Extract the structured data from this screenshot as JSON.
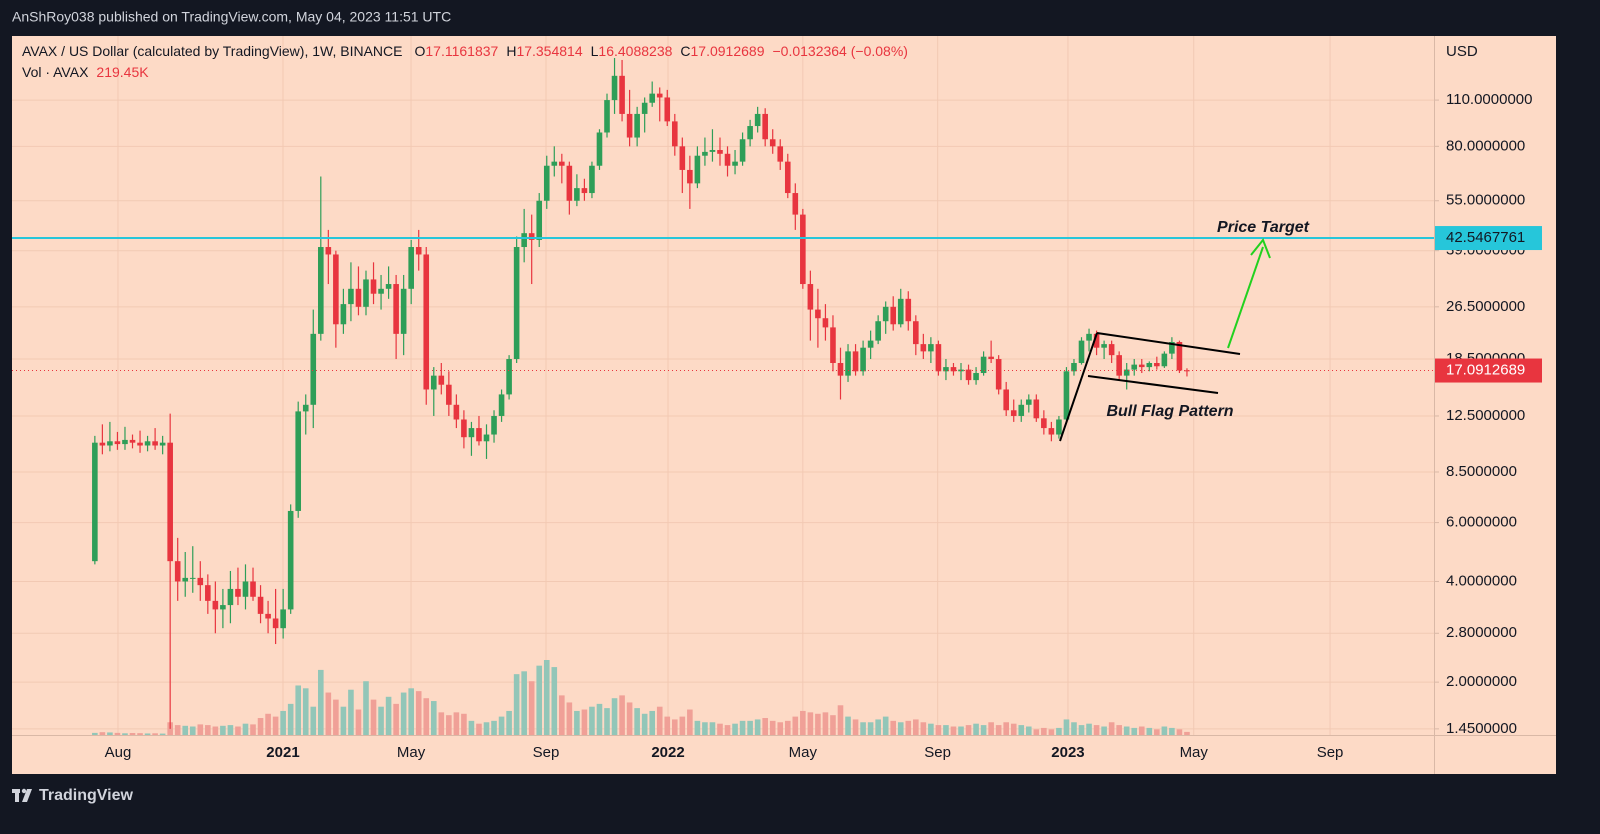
{
  "header": {
    "title": "AnShRoy038 published on TradingView.com, May 04, 2023 11:51 UTC"
  },
  "chart_data": {
    "type": "candlestick",
    "symbol": "AVAX / US Dollar (calculated by TradingView), 1W, BINANCE",
    "ohlc_letters": [
      "O",
      "H",
      "L",
      "C"
    ],
    "change_label": "−0.0132364 (−0.08%)",
    "volume_name": "Vol · AVAX",
    "volume_value_label": "219.45K",
    "y_axis_title": "USD",
    "up_color": "#2e9e58",
    "down_color": "#e8353f",
    "volume_up_color": "#92c6b8",
    "volume_down_color": "#f0a097",
    "log_scale": true,
    "grid": true,
    "ylim": [
      1.39,
      171
    ],
    "yticks": [
      {
        "value": 1.45,
        "label": "1.4500000"
      },
      {
        "value": 2,
        "label": "2.0000000"
      },
      {
        "value": 2.8,
        "label": "2.8000000"
      },
      {
        "value": 4,
        "label": "4.0000000"
      },
      {
        "value": 6,
        "label": "6.0000000"
      },
      {
        "value": 8.5,
        "label": "8.5000000"
      },
      {
        "value": 12.5,
        "label": "12.5000000"
      },
      {
        "value": 18.5,
        "label": "18.5000000"
      },
      {
        "value": 26.5,
        "label": "26.5000000"
      },
      {
        "value": 39,
        "label": "39.0000000"
      },
      {
        "value": 55,
        "label": "55.0000000"
      },
      {
        "value": 80,
        "label": "80.0000000"
      },
      {
        "value": 110,
        "label": "110.0000000"
      }
    ],
    "xlim": [
      -11,
      177.8
    ],
    "xticks": [
      {
        "value": 3.07,
        "label": "Aug"
      },
      {
        "value": 24.98,
        "label": "2021"
      },
      {
        "value": 41.98,
        "label": "May"
      },
      {
        "value": 59.9,
        "label": "Sep"
      },
      {
        "value": 76.1,
        "label": "2022"
      },
      {
        "value": 94.0,
        "label": "May"
      },
      {
        "value": 111.9,
        "label": "Sep"
      },
      {
        "value": 129.2,
        "label": "2023"
      },
      {
        "value": 145.9,
        "label": "May"
      },
      {
        "value": 164.0,
        "label": "Sep"
      }
    ],
    "hline": {
      "value": 42.5467761,
      "color": "#26c6da"
    },
    "annotations": [
      "Price Target",
      "Bull Flag Pattern"
    ],
    "candles": [
      [
        4.6,
        10.9,
        4.5,
        10.4
      ],
      [
        10.4,
        11.8,
        9.6,
        10.2
      ],
      [
        10.2,
        12.0,
        9.8,
        10.5
      ],
      [
        10.5,
        11.2,
        9.9,
        10.3
      ],
      [
        10.3,
        11.6,
        9.9,
        10.6
      ],
      [
        10.6,
        11.0,
        10.0,
        10.4
      ],
      [
        10.4,
        11.3,
        9.7,
        10.2
      ],
      [
        10.2,
        10.9,
        9.8,
        10.5
      ],
      [
        10.5,
        11.5,
        9.9,
        10.2
      ],
      [
        10.2,
        10.9,
        9.6,
        10.4
      ],
      [
        10.4,
        12.7,
        1.45,
        4.6
      ],
      [
        4.6,
        5.4,
        3.5,
        4.0
      ],
      [
        4.0,
        4.9,
        3.6,
        4.1
      ],
      [
        4.1,
        5.1,
        3.7,
        4.1
      ],
      [
        4.1,
        4.6,
        3.5,
        3.9
      ],
      [
        3.9,
        4.2,
        3.2,
        3.5
      ],
      [
        3.5,
        4.0,
        2.8,
        3.3
      ],
      [
        3.3,
        3.8,
        2.9,
        3.4
      ],
      [
        3.4,
        4.3,
        3.0,
        3.8
      ],
      [
        3.8,
        4.4,
        3.4,
        3.6
      ],
      [
        3.6,
        4.5,
        3.3,
        4.0
      ],
      [
        4.0,
        4.4,
        3.5,
        3.6
      ],
      [
        3.6,
        3.9,
        3.0,
        3.2
      ],
      [
        3.2,
        3.5,
        2.8,
        3.1
      ],
      [
        3.1,
        3.8,
        2.6,
        2.9
      ],
      [
        2.9,
        3.8,
        2.7,
        3.3
      ],
      [
        3.3,
        6.8,
        3.2,
        6.5
      ],
      [
        6.5,
        13.8,
        6.2,
        12.9
      ],
      [
        12.9,
        14.5,
        11.0,
        13.5
      ],
      [
        13.5,
        26.0,
        11.5,
        22.0
      ],
      [
        22.0,
        65.0,
        21.0,
        40.0
      ],
      [
        40.0,
        45.0,
        31.0,
        38.0
      ],
      [
        38.0,
        39.0,
        20.0,
        23.5
      ],
      [
        23.5,
        30.0,
        22.0,
        27.0
      ],
      [
        27.0,
        36.0,
        24.0,
        30.0
      ],
      [
        30.0,
        35.0,
        25.0,
        26.5
      ],
      [
        26.5,
        34.0,
        25.0,
        32.0
      ],
      [
        32.0,
        36.0,
        27.0,
        29.0
      ],
      [
        29.0,
        33.0,
        26.0,
        30.0
      ],
      [
        30.0,
        35.0,
        28.0,
        31.0
      ],
      [
        31.0,
        33.0,
        18.5,
        22.0
      ],
      [
        22.0,
        33.0,
        19.0,
        30.0
      ],
      [
        30.0,
        42.0,
        27.0,
        40.0
      ],
      [
        40.0,
        45.0,
        34.0,
        38.0
      ],
      [
        38.0,
        40.0,
        13.5,
        15.0
      ],
      [
        15.0,
        17.5,
        12.5,
        16.5
      ],
      [
        16.5,
        18.0,
        14.5,
        15.5
      ],
      [
        15.5,
        17.0,
        12.5,
        13.5
      ],
      [
        13.5,
        14.5,
        11.5,
        12.2
      ],
      [
        12.2,
        13.0,
        10.0,
        10.8
      ],
      [
        10.8,
        12.0,
        9.5,
        11.5
      ],
      [
        11.5,
        12.5,
        10.2,
        10.5
      ],
      [
        10.5,
        11.8,
        9.3,
        11.0
      ],
      [
        11.0,
        13.0,
        10.4,
        12.5
      ],
      [
        12.5,
        15.0,
        12.0,
        14.5
      ],
      [
        14.5,
        19.0,
        14.0,
        18.5
      ],
      [
        18.5,
        43.0,
        18.0,
        40.0
      ],
      [
        40.0,
        52.0,
        36.0,
        44.0
      ],
      [
        44.0,
        50.0,
        31.0,
        42.0
      ],
      [
        42.0,
        58.0,
        40.0,
        55.0
      ],
      [
        55.0,
        75.0,
        52.0,
        70.0
      ],
      [
        70.0,
        80.0,
        65.0,
        72.0
      ],
      [
        72.0,
        76.0,
        62.0,
        70.0
      ],
      [
        70.0,
        72.0,
        50.0,
        55.0
      ],
      [
        55.0,
        66.0,
        53.0,
        60.0
      ],
      [
        60.0,
        64.0,
        55.0,
        58.0
      ],
      [
        58.0,
        72.0,
        56.0,
        70.0
      ],
      [
        70.0,
        90.0,
        68.0,
        88.0
      ],
      [
        88.0,
        115.0,
        85.0,
        110.0
      ],
      [
        110.0,
        147.0,
        100.0,
        130.0
      ],
      [
        130.0,
        145.0,
        95.0,
        100.0
      ],
      [
        100.0,
        118.0,
        80.0,
        85.0
      ],
      [
        85.0,
        105.0,
        80.0,
        100.0
      ],
      [
        100.0,
        112.0,
        88.0,
        108.0
      ],
      [
        108.0,
        125.0,
        105.0,
        115.0
      ],
      [
        115.0,
        120.0,
        95.0,
        112.0
      ],
      [
        112.0,
        118.0,
        92.0,
        95.0
      ],
      [
        95.0,
        100.0,
        75.0,
        80.0
      ],
      [
        80.0,
        85.0,
        58.0,
        68.0
      ],
      [
        68.0,
        75.0,
        52.0,
        62.0
      ],
      [
        62.0,
        80.0,
        60.0,
        75.0
      ],
      [
        75.0,
        85.0,
        70.0,
        77.0
      ],
      [
        77.0,
        90.0,
        72.0,
        78.0
      ],
      [
        78.0,
        85.0,
        70.0,
        76.0
      ],
      [
        76.0,
        80.0,
        65.0,
        70.0
      ],
      [
        70.0,
        78.0,
        66.0,
        72.0
      ],
      [
        72.0,
        88.0,
        70.0,
        84.0
      ],
      [
        84.0,
        96.0,
        80.0,
        92.0
      ],
      [
        92.0,
        105.0,
        88.0,
        100.0
      ],
      [
        100.0,
        104.0,
        80.0,
        84.0
      ],
      [
        84.0,
        90.0,
        76.0,
        80.0
      ],
      [
        80.0,
        84.0,
        68.0,
        72.0
      ],
      [
        72.0,
        76.0,
        56.0,
        58.0
      ],
      [
        58.0,
        62.0,
        45.0,
        50.0
      ],
      [
        50.0,
        52.0,
        30.0,
        31.0
      ],
      [
        31.0,
        34.0,
        21.0,
        26.0
      ],
      [
        26.0,
        30.0,
        20.0,
        24.5
      ],
      [
        24.5,
        27.0,
        21.0,
        23.0
      ],
      [
        23.0,
        25.0,
        17.0,
        18.0
      ],
      [
        18.0,
        20.0,
        14.0,
        16.5
      ],
      [
        16.5,
        20.5,
        15.8,
        19.5
      ],
      [
        19.5,
        20.5,
        16.5,
        17.0
      ],
      [
        17.0,
        21.0,
        16.5,
        20.0
      ],
      [
        20.0,
        22.5,
        18.5,
        21.0
      ],
      [
        21.0,
        25.0,
        20.5,
        24.0
      ],
      [
        24.0,
        27.5,
        22.0,
        26.5
      ],
      [
        26.5,
        28.5,
        22.5,
        23.5
      ],
      [
        23.5,
        30.0,
        23.0,
        28.0
      ],
      [
        28.0,
        29.5,
        22.5,
        24.0
      ],
      [
        24.0,
        25.0,
        19.0,
        20.5
      ],
      [
        20.5,
        22.0,
        18.5,
        19.5
      ],
      [
        19.5,
        21.5,
        18.0,
        20.5
      ],
      [
        20.5,
        21.0,
        16.5,
        17.0
      ],
      [
        17.0,
        18.5,
        16.0,
        17.5
      ],
      [
        17.5,
        18.0,
        16.5,
        17.0
      ],
      [
        17.0,
        18.0,
        16.0,
        17.2
      ],
      [
        17.2,
        17.8,
        15.5,
        16.0
      ],
      [
        16.0,
        17.5,
        15.5,
        16.8
      ],
      [
        16.8,
        19.5,
        16.5,
        18.8
      ],
      [
        18.8,
        21.0,
        18.0,
        18.5
      ],
      [
        18.5,
        19.0,
        14.5,
        15.0
      ],
      [
        15.0,
        15.8,
        12.5,
        13.0
      ],
      [
        13.0,
        14.0,
        12.0,
        12.5
      ],
      [
        12.5,
        14.0,
        12.0,
        13.5
      ],
      [
        13.5,
        14.5,
        12.8,
        14.0
      ],
      [
        14.0,
        14.5,
        12.0,
        12.3
      ],
      [
        12.3,
        13.0,
        11.0,
        11.5
      ],
      [
        11.5,
        12.0,
        10.5,
        11.0
      ],
      [
        11.0,
        12.5,
        10.7,
        12.2
      ],
      [
        12.2,
        17.5,
        12.0,
        17.0
      ],
      [
        17.0,
        18.5,
        16.5,
        18.0
      ],
      [
        18.0,
        21.5,
        17.8,
        21.0
      ],
      [
        21.0,
        22.8,
        19.5,
        22.0
      ],
      [
        22.0,
        22.5,
        19.0,
        20.0
      ],
      [
        20.0,
        21.0,
        18.5,
        20.5
      ],
      [
        20.5,
        21.0,
        18.0,
        19.0
      ],
      [
        19.0,
        19.5,
        16.0,
        16.5
      ],
      [
        16.5,
        18.0,
        15.0,
        17.2
      ],
      [
        17.2,
        18.5,
        16.5,
        17.8
      ],
      [
        17.8,
        18.5,
        16.8,
        17.5
      ],
      [
        17.5,
        18.2,
        17.0,
        18.0
      ],
      [
        18.0,
        18.8,
        17.2,
        17.6
      ],
      [
        17.6,
        19.5,
        17.4,
        19.2
      ],
      [
        19.2,
        21.5,
        18.5,
        20.8
      ],
      [
        20.8,
        21.0,
        16.8,
        17.1
      ],
      [
        17.1161837,
        17.354814,
        16.4088238,
        17.0912689
      ]
    ],
    "volume": [
      150,
      200,
      180,
      150,
      120,
      140,
      130,
      110,
      120,
      100,
      900,
      700,
      650,
      600,
      750,
      700,
      600,
      650,
      700,
      600,
      800,
      750,
      1200,
      1500,
      1300,
      1700,
      2200,
      3500,
      3300,
      2000,
      4600,
      3000,
      2500,
      2000,
      3200,
      1800,
      3800,
      2500,
      2000,
      2700,
      2200,
      3000,
      3300,
      3100,
      2600,
      2400,
      1600,
      1400,
      1600,
      1500,
      1000,
      800,
      900,
      1000,
      1300,
      1700,
      4300,
      4500,
      3800,
      4900,
      5300,
      4800,
      2800,
      2300,
      1700,
      1800,
      2000,
      2200,
      1900,
      2600,
      2800,
      2300,
      1900,
      1500,
      1700,
      2000,
      1300,
      1100,
      1300,
      1800,
      1000,
      900,
      900,
      800,
      700,
      800,
      1000,
      1000,
      1100,
      1200,
      1000,
      900,
      1000,
      1300,
      1700,
      1600,
      1500,
      1600,
      1400,
      2100,
      1300,
      1100,
      900,
      900,
      1100,
      1300,
      1000,
      900,
      1000,
      1100,
      900,
      800,
      700,
      700,
      600,
      600,
      700,
      800,
      700,
      900,
      700,
      900,
      800,
      700,
      600,
      400,
      500,
      400,
      500,
      1100,
      900,
      700,
      800,
      700,
      600,
      900,
      700,
      600,
      500,
      600,
      500,
      400,
      600,
      500,
      400,
      219.45
    ]
  },
  "footer": {
    "brand": "TradingView"
  }
}
